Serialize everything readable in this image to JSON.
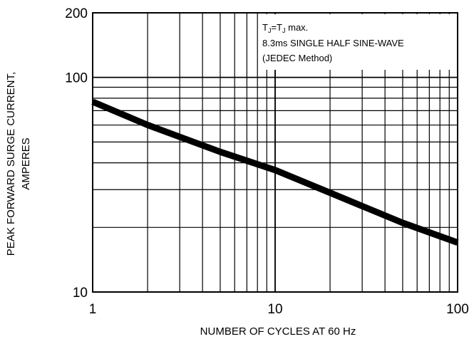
{
  "chart_data": {
    "type": "line",
    "title": "",
    "xlabel": "NUMBER OF CYCLES AT 60 Hz",
    "ylabel_lines": [
      "PEAK FORWARD SURGE CURRENT,",
      "AMPERES"
    ],
    "x_scale": "log",
    "y_scale": "log",
    "xlim": [
      1,
      100
    ],
    "ylim": [
      10,
      200
    ],
    "x_ticks": [
      1,
      10,
      100
    ],
    "x_tick_labels": [
      "1",
      "10",
      "100"
    ],
    "y_ticks": [
      10,
      100,
      200
    ],
    "y_tick_labels": [
      "10",
      "100",
      "200"
    ],
    "grid": true,
    "legend": "none",
    "annotations": {
      "line1_main": "T",
      "line1_sub1": "J",
      "line1_eq": "=T",
      "line1_sub2": "J",
      "line1_rest": " max.",
      "line2": "8.3ms SINGLE HALF SINE-WAVE",
      "line3": "(JEDEC Method)"
    },
    "series": [
      {
        "x": [
          1,
          2,
          5,
          10,
          20,
          50,
          100
        ],
        "y": [
          77,
          60,
          45,
          37,
          29,
          21,
          17
        ]
      }
    ]
  }
}
